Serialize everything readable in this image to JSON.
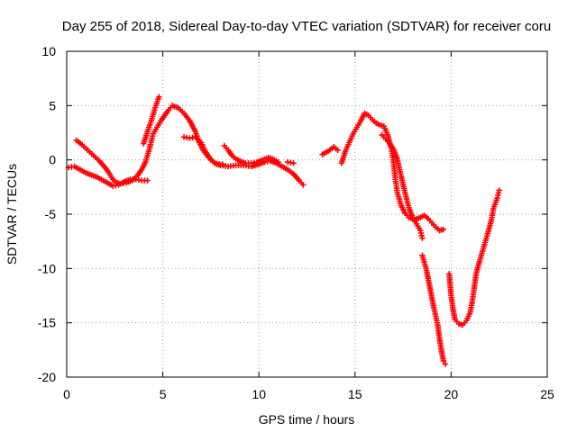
{
  "chart_data": {
    "type": "scatter",
    "title": "Day 255 of 2018, Sidereal Day-to-day VTEC variation (SDTVAR) for receiver coru",
    "xlabel": "GPS time / hours",
    "ylabel": "SDTVAR / TECUs",
    "xlim": [
      0,
      25
    ],
    "ylim": [
      -20,
      10
    ],
    "xticks": [
      0,
      5,
      10,
      15,
      20,
      25
    ],
    "yticks": [
      10,
      5,
      0,
      -5,
      -10,
      -15,
      -20
    ],
    "grid": true,
    "marker": "+",
    "series": [
      {
        "name": "SDTVAR",
        "color": "#ff0000",
        "segments": [
          [
            [
              0.1,
              -0.7
            ],
            [
              0.4,
              -0.6
            ],
            [
              0.6,
              -0.8
            ],
            [
              0.8,
              -1.0
            ],
            [
              1.0,
              -1.2
            ],
            [
              1.3,
              -1.4
            ],
            [
              1.6,
              -1.6
            ],
            [
              1.9,
              -1.9
            ],
            [
              2.2,
              -2.2
            ],
            [
              2.4,
              -2.4
            ],
            [
              2.7,
              -2.3
            ],
            [
              3.0,
              -2.0
            ],
            [
              3.3,
              -1.8
            ],
            [
              3.6,
              -1.8
            ],
            [
              3.9,
              -1.9
            ],
            [
              4.2,
              -1.9
            ]
          ],
          [
            [
              0.5,
              1.8
            ],
            [
              0.8,
              1.4
            ],
            [
              1.1,
              0.9
            ],
            [
              1.4,
              0.4
            ],
            [
              1.7,
              -0.1
            ],
            [
              2.0,
              -0.7
            ],
            [
              2.2,
              -1.2
            ],
            [
              2.4,
              -1.8
            ],
            [
              2.6,
              -2.1
            ],
            [
              2.8,
              -2.2
            ],
            [
              3.1,
              -2.1
            ],
            [
              3.4,
              -1.9
            ],
            [
              3.7,
              -1.4
            ],
            [
              3.9,
              -0.9
            ],
            [
              4.1,
              -0.2
            ],
            [
              4.3,
              1.0
            ],
            [
              4.5,
              2.4
            ],
            [
              4.7,
              3.0
            ],
            [
              4.9,
              3.6
            ],
            [
              5.1,
              4.1
            ],
            [
              5.3,
              4.6
            ],
            [
              5.5,
              5.0
            ],
            [
              5.8,
              4.8
            ],
            [
              6.1,
              4.3
            ],
            [
              6.4,
              3.6
            ],
            [
              6.7,
              2.6
            ],
            [
              6.9,
              1.6
            ],
            [
              7.1,
              0.9
            ],
            [
              7.4,
              0.2
            ],
            [
              7.7,
              -0.3
            ],
            [
              8.0,
              -0.5
            ],
            [
              8.4,
              -0.6
            ],
            [
              8.8,
              -0.5
            ],
            [
              9.2,
              -0.5
            ],
            [
              9.6,
              -0.6
            ],
            [
              10.0,
              -0.4
            ],
            [
              10.3,
              -0.2
            ],
            [
              10.6,
              -0.1
            ],
            [
              10.9,
              -0.3
            ],
            [
              11.2,
              -0.6
            ],
            [
              11.5,
              -0.9
            ],
            [
              11.8,
              -1.3
            ],
            [
              12.1,
              -1.9
            ],
            [
              12.3,
              -2.3
            ]
          ],
          [
            [
              4.0,
              1.5
            ],
            [
              4.2,
              2.6
            ],
            [
              4.4,
              3.6
            ],
            [
              4.6,
              4.8
            ],
            [
              4.8,
              5.8
            ]
          ],
          [
            [
              6.1,
              2.1
            ],
            [
              6.4,
              2.0
            ],
            [
              6.7,
              2.1
            ],
            [
              7.0,
              1.6
            ],
            [
              7.2,
              0.8
            ],
            [
              7.5,
              0.0
            ],
            [
              7.8,
              -0.4
            ],
            [
              8.1,
              -0.4
            ]
          ],
          [
            [
              8.2,
              1.3
            ],
            [
              8.4,
              0.9
            ],
            [
              8.6,
              0.4
            ],
            [
              8.8,
              0.1
            ],
            [
              9.0,
              -0.1
            ],
            [
              9.3,
              -0.3
            ],
            [
              9.6,
              -0.3
            ],
            [
              9.9,
              -0.2
            ],
            [
              10.2,
              0.0
            ],
            [
              10.5,
              0.2
            ],
            [
              10.7,
              0.1
            ],
            [
              11.0,
              -0.2
            ]
          ],
          [
            [
              11.5,
              -0.2
            ],
            [
              11.8,
              -0.3
            ]
          ],
          [
            [
              13.3,
              0.5
            ],
            [
              13.6,
              0.8
            ],
            [
              13.9,
              1.2
            ],
            [
              14.1,
              0.9
            ]
          ],
          [
            [
              14.3,
              -0.3
            ],
            [
              14.5,
              0.8
            ],
            [
              14.7,
              1.6
            ],
            [
              14.9,
              2.4
            ],
            [
              15.1,
              3.0
            ],
            [
              15.3,
              3.6
            ],
            [
              15.5,
              4.3
            ],
            [
              15.7,
              4.1
            ],
            [
              15.9,
              3.7
            ],
            [
              16.1,
              3.4
            ],
            [
              16.3,
              3.2
            ],
            [
              16.5,
              3.1
            ],
            [
              16.7,
              2.3
            ],
            [
              16.9,
              1.0
            ],
            [
              17.0,
              -0.2
            ],
            [
              17.1,
              -1.8
            ],
            [
              17.2,
              -3.0
            ],
            [
              17.4,
              -4.2
            ],
            [
              17.6,
              -4.9
            ],
            [
              17.8,
              -5.3
            ],
            [
              18.1,
              -5.5
            ],
            [
              18.4,
              -5.3
            ],
            [
              18.6,
              -5.1
            ],
            [
              18.8,
              -5.4
            ],
            [
              19.0,
              -5.8
            ],
            [
              19.2,
              -6.2
            ],
            [
              19.4,
              -6.5
            ],
            [
              19.6,
              -6.4
            ]
          ],
          [
            [
              16.4,
              2.3
            ],
            [
              16.6,
              1.9
            ],
            [
              16.8,
              1.5
            ],
            [
              17.0,
              1.0
            ],
            [
              17.2,
              0.1
            ],
            [
              17.4,
              -1.5
            ],
            [
              17.6,
              -3.0
            ],
            [
              17.8,
              -4.4
            ],
            [
              18.0,
              -5.3
            ],
            [
              18.2,
              -5.9
            ],
            [
              18.4,
              -6.5
            ],
            [
              18.5,
              -7.2
            ]
          ],
          [
            [
              18.5,
              -8.8
            ],
            [
              18.7,
              -10.0
            ],
            [
              18.9,
              -11.8
            ],
            [
              19.1,
              -13.6
            ],
            [
              19.3,
              -15.2
            ],
            [
              19.4,
              -16.5
            ],
            [
              19.5,
              -17.6
            ],
            [
              19.6,
              -18.5
            ],
            [
              19.7,
              -18.8
            ]
          ],
          [
            [
              19.9,
              -10.5
            ],
            [
              20.0,
              -12.5
            ],
            [
              20.1,
              -13.8
            ],
            [
              20.2,
              -14.7
            ],
            [
              20.4,
              -15.1
            ],
            [
              20.6,
              -15.2
            ],
            [
              20.8,
              -14.8
            ],
            [
              21.0,
              -14.0
            ],
            [
              21.1,
              -13.0
            ],
            [
              21.2,
              -11.8
            ],
            [
              21.3,
              -10.5
            ],
            [
              21.5,
              -9.2
            ],
            [
              21.7,
              -8.0
            ],
            [
              21.9,
              -6.8
            ],
            [
              22.1,
              -5.5
            ],
            [
              22.2,
              -4.5
            ],
            [
              22.4,
              -3.5
            ],
            [
              22.5,
              -2.8
            ]
          ]
        ]
      }
    ]
  }
}
